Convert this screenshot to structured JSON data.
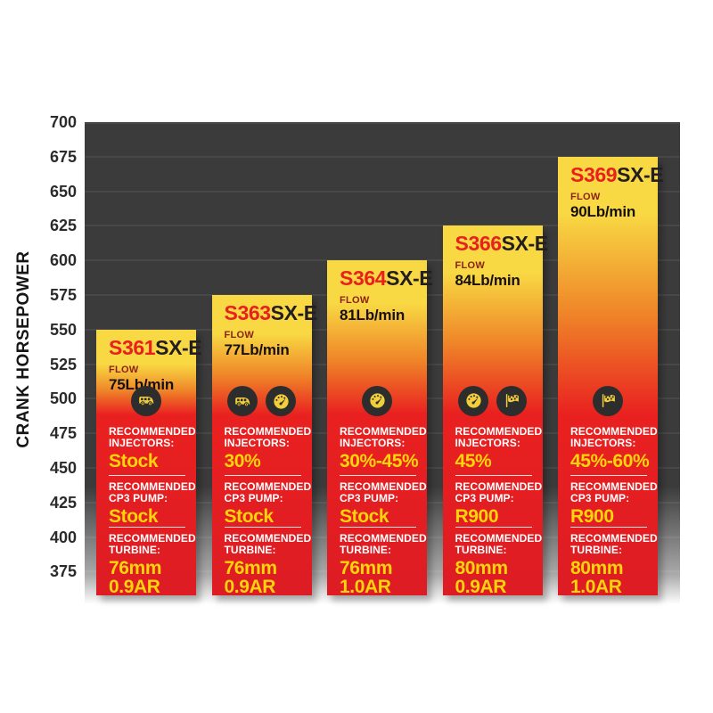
{
  "chart_data": {
    "type": "bar",
    "title": "",
    "ylabel": "CRANK HORSEPOWER",
    "ylim": [
      375,
      700
    ],
    "yticks": [
      700,
      675,
      650,
      625,
      600,
      575,
      550,
      525,
      500,
      475,
      450,
      425,
      400,
      375
    ],
    "grid": "horizontal",
    "legend": "none",
    "section_labels": {
      "injectors": "RECOMMENDED INJECTORS:",
      "cp3": "RECOMMENDED CP3 PUMP:",
      "turbine": "RECOMMENDED TURBINE:"
    },
    "bars": [
      {
        "model_prefix": "S361",
        "model_suffix": "SX-E",
        "flow_label": "FLOW",
        "flow_value": "75Lb/min",
        "crank_horsepower": 550,
        "icons": [
          "rv-icon"
        ],
        "injectors": "Stock",
        "cp3_pump": "Stock",
        "turbine": [
          "76mm",
          "0.9AR"
        ]
      },
      {
        "model_prefix": "S363",
        "model_suffix": "SX-E",
        "flow_label": "FLOW",
        "flow_value": "77Lb/min",
        "crank_horsepower": 575,
        "icons": [
          "rv-icon",
          "gauge-icon"
        ],
        "injectors": "30%",
        "cp3_pump": "Stock",
        "turbine": [
          "76mm",
          "0.9AR"
        ]
      },
      {
        "model_prefix": "S364",
        "model_suffix": "SX-E",
        "flow_label": "FLOW",
        "flow_value": "81Lb/min",
        "crank_horsepower": 600,
        "icons": [
          "gauge-icon"
        ],
        "injectors": "30%-45%",
        "cp3_pump": "Stock",
        "turbine": [
          "76mm",
          "1.0AR"
        ]
      },
      {
        "model_prefix": "S366",
        "model_suffix": "SX-E",
        "flow_label": "FLOW",
        "flow_value": "84Lb/min",
        "crank_horsepower": 625,
        "icons": [
          "gauge-icon",
          "flag-icon"
        ],
        "injectors": "45%",
        "cp3_pump": "R900",
        "turbine": [
          "80mm",
          "0.9AR"
        ]
      },
      {
        "model_prefix": "S369",
        "model_suffix": "SX-E",
        "flow_label": "FLOW",
        "flow_value": "90Lb/min",
        "crank_horsepower": 675,
        "icons": [
          "flag-icon"
        ],
        "injectors": "45%-60%",
        "cp3_pump": "R900",
        "turbine": [
          "80mm",
          "1.0AR"
        ]
      }
    ],
    "colors": {
      "plot_bg": "#3b3b3b",
      "gridline": "#4a4a4a",
      "bar_yellow": "#f8d843",
      "bar_orange": "#ef8428",
      "bar_red": "#e92020",
      "bar_red_deep": "#dd1c23",
      "model_red": "#e8201e",
      "model_dark": "#231f20",
      "flow_label": "#8c1f17",
      "value_yellow": "#ffd40a",
      "icon_circle": "#2d2d2d",
      "icon_glyph": "#f2ce3a",
      "axis_text": "#2b2b2b"
    }
  }
}
